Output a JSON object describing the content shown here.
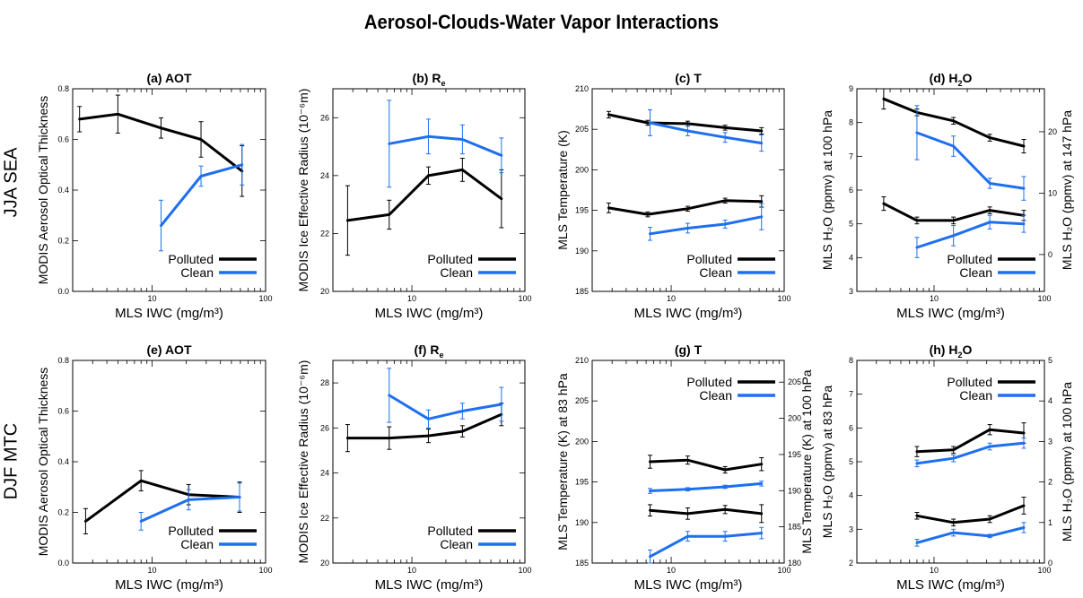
{
  "figure_title": "Aerosol-Clouds-Water Vapor Interactions",
  "row_labels": [
    "JJA SEA",
    "DJF MTC"
  ],
  "colors": {
    "polluted": "#000000",
    "clean": "#1e6ff0"
  },
  "chart_data": [
    {
      "id": "a",
      "type": "line",
      "title": "(a) AOT",
      "xlabel": "MLS IWC (mg/m³)",
      "ylabel": "MODIS Aerosol Optical Thickness",
      "xscale": "log",
      "xlim": [
        2,
        100
      ],
      "ylim": [
        0,
        0.8
      ],
      "yticks": [
        0,
        0.2,
        0.4,
        0.6,
        0.8
      ],
      "ytick_labels": [
        "0.0",
        "0.2",
        "0.4",
        "0.6",
        "0.8"
      ],
      "legend_placement": "bottom-right",
      "series": [
        {
          "name": "Polluted",
          "color": "#000000",
          "x": [
            2.3,
            5,
            12,
            27,
            62
          ],
          "y": [
            0.68,
            0.7,
            0.645,
            0.6,
            0.475
          ],
          "err": [
            0.05,
            0.075,
            0.04,
            0.07,
            0.1
          ]
        },
        {
          "name": "Clean",
          "color": "#1e6ff0",
          "x": [
            12,
            27,
            62
          ],
          "y": [
            0.26,
            0.455,
            0.5
          ],
          "err": [
            0.1,
            0.04,
            0.08
          ]
        }
      ]
    },
    {
      "id": "b",
      "type": "line",
      "title": "(b) R",
      "title_sub": "e",
      "xlabel": "MLS IWC (mg/m³)",
      "ylabel": "MODIS Ice Effective Radius (10⁻⁶m)",
      "xscale": "log",
      "xlim": [
        2,
        100
      ],
      "ylim": [
        20,
        27
      ],
      "yticks": [
        20,
        22,
        24,
        26
      ],
      "ytick_labels": [
        "20",
        "22",
        "24",
        "26"
      ],
      "legend_placement": "bottom-right",
      "series": [
        {
          "name": "Polluted",
          "color": "#000000",
          "x": [
            2.7,
            6.3,
            14,
            28,
            62
          ],
          "y": [
            22.45,
            22.65,
            24.0,
            24.2,
            23.2
          ],
          "err": [
            1.2,
            0.5,
            0.3,
            0.4,
            1.0
          ]
        },
        {
          "name": "Clean",
          "color": "#1e6ff0",
          "x": [
            6.3,
            14,
            28,
            62
          ],
          "y": [
            25.1,
            25.35,
            25.25,
            24.7
          ],
          "err": [
            1.5,
            0.6,
            0.5,
            0.6
          ]
        }
      ]
    },
    {
      "id": "c",
      "type": "line",
      "title": "(c) T",
      "xlabel": "MLS IWC (mg/m³)",
      "ylabel": "MLS Temperature (K)",
      "xscale": "log",
      "xlim": [
        2,
        100
      ],
      "ylim": [
        185,
        210
      ],
      "yticks": [
        185,
        190,
        195,
        200,
        205,
        210
      ],
      "ytick_labels": [
        "185",
        "190",
        "195",
        "200",
        "205",
        "210"
      ],
      "legend_placement": "bottom-right",
      "series": [
        {
          "name": "Polluted",
          "color": "#000000",
          "x": [
            2.8,
            6.2,
            14,
            30,
            63
          ],
          "y": [
            206.8,
            205.8,
            205.7,
            205.2,
            204.8
          ],
          "err": [
            0.4,
            0.3,
            0.3,
            0.3,
            0.4
          ]
        },
        {
          "name": "Clean",
          "color": "#1e6ff0",
          "x": [
            6.5,
            14,
            30,
            63
          ],
          "y": [
            205.8,
            204.8,
            204.0,
            203.3
          ],
          "err": [
            1.6,
            0.6,
            0.6,
            1.0
          ]
        },
        {
          "name": "Polluted",
          "color": "#000000",
          "x": [
            2.8,
            6.2,
            14,
            30,
            63
          ],
          "y": [
            195.3,
            194.5,
            195.2,
            196.2,
            196.1
          ],
          "err": [
            0.6,
            0.3,
            0.3,
            0.3,
            0.7
          ]
        },
        {
          "name": "Clean",
          "color": "#1e6ff0",
          "x": [
            6.5,
            14,
            30,
            63
          ],
          "y": [
            192.1,
            192.8,
            193.3,
            194.2
          ],
          "err": [
            0.8,
            0.6,
            0.5,
            1.6
          ]
        }
      ]
    },
    {
      "id": "d",
      "type": "line",
      "title": "(d) H",
      "title_sub": "2",
      "title_end": "O",
      "xlabel": "MLS IWC (mg/m³)",
      "ylabel": "MLS H₂O (ppmv) at 100 hPa",
      "ylabel_right": "MLS H₂O (ppmv) at 147 hPa",
      "xscale": "log",
      "xlim": [
        2,
        100
      ],
      "ylim": [
        3,
        9
      ],
      "yticks": [
        3,
        4,
        5,
        6,
        7,
        8,
        9
      ],
      "ytick_labels": [
        "3",
        "4",
        "5",
        "6",
        "7",
        "8",
        "9"
      ],
      "ylim_right": [
        -6,
        27
      ],
      "yticks_right": [
        0,
        10,
        20
      ],
      "ytick_labels_right": [
        "0",
        "10",
        "20"
      ],
      "legend_placement": "bottom-right",
      "series": [
        {
          "name": "Polluted",
          "color": "#000000",
          "x": [
            3.5,
            7,
            15,
            32,
            65
          ],
          "y": [
            8.7,
            8.3,
            8.05,
            7.55,
            7.3
          ],
          "err": [
            0.3,
            0.1,
            0.1,
            0.1,
            0.2
          ]
        },
        {
          "name": "Clean",
          "color": "#1e6ff0",
          "x": [
            7,
            15,
            32,
            65
          ],
          "y": [
            7.7,
            7.3,
            6.2,
            6.05
          ],
          "err": [
            0.8,
            0.3,
            0.15,
            0.35
          ]
        },
        {
          "name": "Polluted",
          "color": "#000000",
          "x": [
            3.5,
            7,
            15,
            32,
            65
          ],
          "y": [
            5.6,
            5.1,
            5.1,
            5.4,
            5.25
          ],
          "err": [
            0.2,
            0.1,
            0.1,
            0.1,
            0.15
          ]
        },
        {
          "name": "Clean",
          "color": "#1e6ff0",
          "x": [
            7,
            15,
            32,
            65
          ],
          "y": [
            4.3,
            4.65,
            5.05,
            5.0
          ],
          "err": [
            0.3,
            0.3,
            0.2,
            0.25
          ]
        }
      ]
    },
    {
      "id": "e",
      "type": "line",
      "title": "(e) AOT",
      "xlabel": "MLS IWC (mg/m³)",
      "ylabel": "MODIS Aerosol Optical Thickness",
      "xscale": "log",
      "xlim": [
        2,
        100
      ],
      "ylim": [
        0,
        0.8
      ],
      "yticks": [
        0,
        0.2,
        0.4,
        0.6,
        0.8
      ],
      "ytick_labels": [
        "0.0",
        "0.2",
        "0.4",
        "0.6",
        "0.8"
      ],
      "legend_placement": "bottom-right",
      "series": [
        {
          "name": "Polluted",
          "color": "#000000",
          "x": [
            2.6,
            8,
            21,
            59
          ],
          "y": [
            0.165,
            0.325,
            0.27,
            0.26
          ],
          "err": [
            0.05,
            0.04,
            0.04,
            0.06
          ]
        },
        {
          "name": "Clean",
          "color": "#1e6ff0",
          "x": [
            8,
            21,
            59
          ],
          "y": [
            0.165,
            0.25,
            0.26
          ],
          "err": [
            0.035,
            0.04,
            0.055
          ]
        }
      ]
    },
    {
      "id": "f",
      "type": "line",
      "title": "(f) R",
      "title_sub": "e",
      "xlabel": "MLS IWC (mg/m³)",
      "ylabel": "MODIS Ice Effective Radius (10⁻⁶m)",
      "xscale": "log",
      "xlim": [
        2,
        100
      ],
      "ylim": [
        20,
        29
      ],
      "yticks": [
        20,
        22,
        24,
        26,
        28
      ],
      "ytick_labels": [
        "20",
        "22",
        "24",
        "26",
        "28"
      ],
      "legend_placement": "bottom-right",
      "series": [
        {
          "name": "Polluted",
          "color": "#000000",
          "x": [
            2.7,
            6.3,
            14,
            28,
            62
          ],
          "y": [
            25.55,
            25.55,
            25.65,
            25.85,
            26.6
          ],
          "err": [
            0.6,
            0.5,
            0.3,
            0.25,
            0.5
          ]
        },
        {
          "name": "Clean",
          "color": "#1e6ff0",
          "x": [
            6.3,
            14,
            28,
            62
          ],
          "y": [
            27.45,
            26.4,
            26.75,
            27.05
          ],
          "err": [
            1.2,
            0.4,
            0.35,
            0.75
          ]
        }
      ]
    },
    {
      "id": "g",
      "type": "line",
      "title": "(g) T",
      "xlabel": "MLS IWC (mg/m³)",
      "ylabel": "MLS Temperature (K) at 83 hPa",
      "ylabel_right": "MLS Temperature (K) at 100 hPa",
      "xscale": "log",
      "xlim": [
        2,
        100
      ],
      "ylim": [
        185,
        210
      ],
      "yticks": [
        185,
        190,
        195,
        200,
        205,
        210
      ],
      "ytick_labels": [
        "185",
        "190",
        "195",
        "200",
        "205",
        "210"
      ],
      "ylim_right": [
        180,
        208
      ],
      "yticks_right": [
        180,
        185,
        190,
        195,
        200,
        205
      ],
      "ytick_labels_right": [
        "180",
        "185",
        "190",
        "195",
        "200",
        "205"
      ],
      "legend_placement": "top-right",
      "series": [
        {
          "name": "Polluted",
          "color": "#000000",
          "x": [
            6.5,
            14,
            30,
            63
          ],
          "y": [
            197.5,
            197.7,
            196.5,
            197.2
          ],
          "err": [
            0.8,
            0.5,
            0.4,
            0.8
          ]
        },
        {
          "name": "Clean",
          "color": "#1e6ff0",
          "x": [
            6.5,
            14,
            30,
            63
          ],
          "y": [
            193.9,
            194.1,
            194.4,
            194.8
          ],
          "err": [
            0.3,
            0.2,
            0.2,
            0.3
          ]
        },
        {
          "name": "Polluted",
          "color": "#000000",
          "x": [
            6.5,
            14,
            30,
            63
          ],
          "y": [
            191.5,
            191.1,
            191.6,
            191.1
          ],
          "err": [
            0.7,
            0.7,
            0.5,
            1.1
          ]
        },
        {
          "name": "Clean",
          "color": "#1e6ff0",
          "x": [
            6.5,
            14,
            30,
            63
          ],
          "y": [
            185.8,
            188.3,
            188.3,
            188.7
          ],
          "err": [
            0.8,
            0.6,
            0.6,
            0.7
          ]
        }
      ]
    },
    {
      "id": "h",
      "type": "line",
      "title": "(h) H",
      "title_sub": "2",
      "title_end": "O",
      "xlabel": "MLS IWC (mg/m³)",
      "ylabel": "MLS H₂O (ppmv) at 83 hPa",
      "ylabel_right": "MLS H₂O (ppmv) at 100 hPa",
      "xscale": "log",
      "xlim": [
        2,
        100
      ],
      "ylim": [
        2,
        8
      ],
      "yticks": [
        2,
        3,
        4,
        5,
        6,
        7,
        8
      ],
      "ytick_labels": [
        "2",
        "3",
        "4",
        "5",
        "6",
        "7",
        "8"
      ],
      "ylim_right": [
        0,
        5
      ],
      "yticks_right": [
        0,
        1,
        2,
        3,
        4,
        5
      ],
      "ytick_labels_right": [
        "0",
        "1",
        "2",
        "3",
        "4",
        "5"
      ],
      "legend_placement": "top-right",
      "series": [
        {
          "name": "Polluted",
          "color": "#000000",
          "x": [
            7,
            15,
            32,
            65
          ],
          "y": [
            5.3,
            5.35,
            5.95,
            5.85
          ],
          "err": [
            0.15,
            0.1,
            0.15,
            0.3
          ]
        },
        {
          "name": "Clean",
          "color": "#1e6ff0",
          "x": [
            7,
            15,
            32,
            65
          ],
          "y": [
            4.95,
            5.1,
            5.45,
            5.55
          ],
          "err": [
            0.1,
            0.1,
            0.1,
            0.15
          ]
        },
        {
          "name": "Polluted",
          "color": "#000000",
          "x": [
            7,
            15,
            32,
            65
          ],
          "y": [
            3.4,
            3.2,
            3.3,
            3.7
          ],
          "err": [
            0.1,
            0.1,
            0.1,
            0.25
          ]
        },
        {
          "name": "Clean",
          "color": "#1e6ff0",
          "x": [
            7,
            15,
            32,
            65
          ],
          "y": [
            2.6,
            2.9,
            2.8,
            3.05
          ],
          "err": [
            0.1,
            0.1,
            0.05,
            0.15
          ]
        }
      ]
    }
  ]
}
